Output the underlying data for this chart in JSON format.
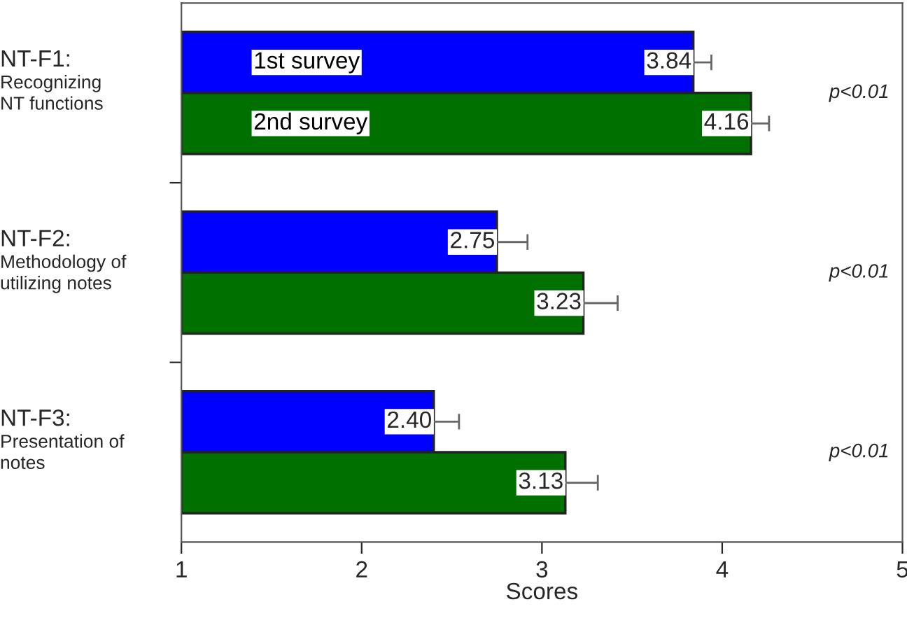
{
  "chart_data": {
    "type": "bar",
    "orientation": "horizontal",
    "xlabel": "Scores",
    "categories": [
      "NT-F1:\nRecognizing\nNT functions",
      "NT-F2:\nMethodology of\nutilizing notes",
      "NT-F3:\nPresentation of\nnotes"
    ],
    "series": [
      {
        "name": "1st survey",
        "color": "#0000ff",
        "values": [
          3.84,
          2.75,
          2.4
        ],
        "value_labels": [
          "3.84",
          "2.75",
          "2.40"
        ],
        "errors": [
          0.1,
          0.17,
          0.14
        ]
      },
      {
        "name": "2nd survey",
        "color": "#007000",
        "values": [
          4.16,
          3.23,
          3.13
        ],
        "value_labels": [
          "4.16",
          "3.23",
          "3.13"
        ],
        "errors": [
          0.1,
          0.19,
          0.18
        ]
      }
    ],
    "xlim": [
      1,
      5
    ],
    "xticks": [
      1,
      2,
      3,
      4,
      5
    ],
    "legend": false,
    "grid": false,
    "annotations": [
      "p<0.01",
      "p<0.01",
      "p<0.01"
    ]
  }
}
